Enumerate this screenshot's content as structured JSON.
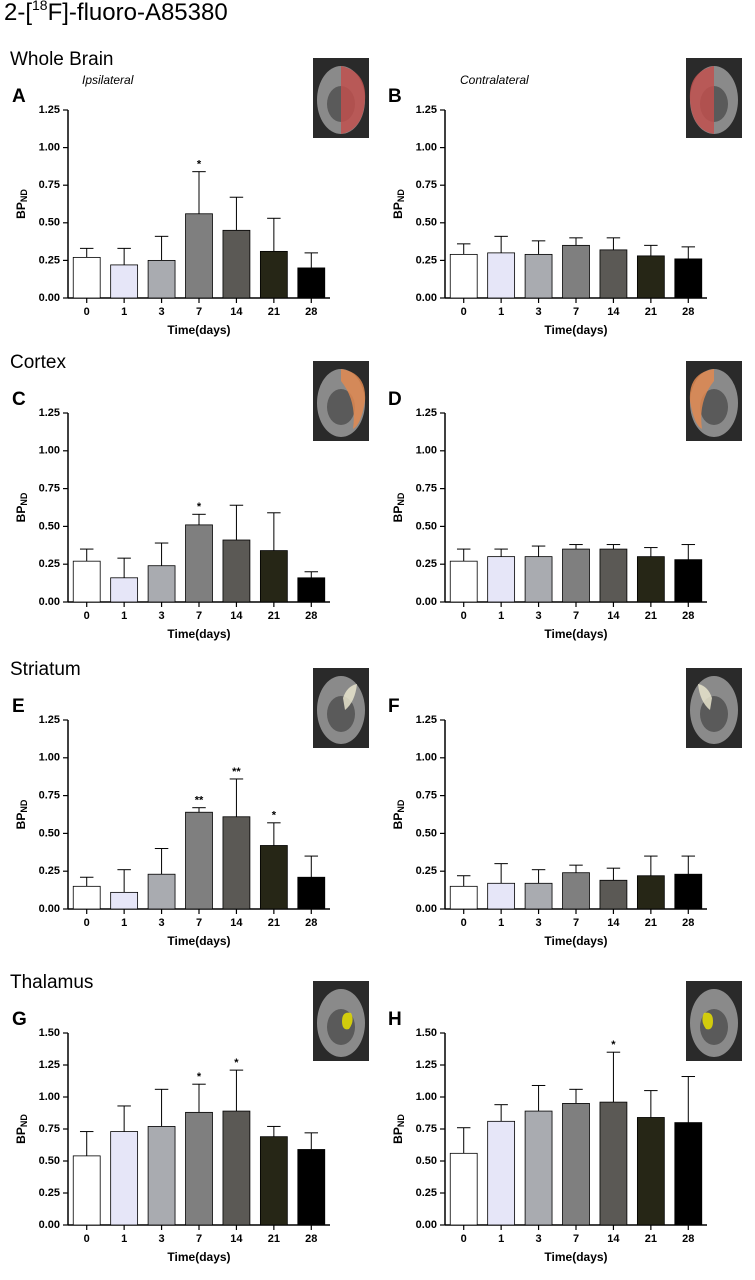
{
  "title_parts": [
    "2-[",
    "18",
    "F]-fluoro-A85380"
  ],
  "chart_data": [
    {
      "type": "bar",
      "panel": "A",
      "section": "Whole Brain",
      "note": "Ipsilateral",
      "x_label": "Time(days)",
      "y_label": "BP",
      "y_label_sub": "ND",
      "categories": [
        "0",
        "1",
        "3",
        "7",
        "14",
        "21",
        "28"
      ],
      "values": [
        0.27,
        0.22,
        0.25,
        0.56,
        0.45,
        0.31,
        0.2
      ],
      "errors": [
        0.06,
        0.11,
        0.16,
        0.28,
        0.22,
        0.22,
        0.1
      ],
      "significance": [
        null,
        null,
        null,
        "*",
        null,
        null,
        null
      ],
      "colors": [
        "#ffffff",
        "#e6e6f8",
        "#a9abb0",
        "#7f7f7f",
        "#5b5955",
        "#262616",
        "#000000"
      ],
      "ylim": [
        0,
        1.25
      ],
      "yticks": [
        {
          "value": 0,
          "label": "0.00"
        },
        {
          "value": 0.25,
          "label": "0.25"
        },
        {
          "value": 0.5,
          "label": "0.50"
        },
        {
          "value": 0.75,
          "label": "0.75"
        },
        {
          "value": 1,
          "label": "1.00"
        },
        {
          "value": 1.25,
          "label": "1.25"
        }
      ]
    },
    {
      "type": "bar",
      "panel": "B",
      "note": "Contralateral",
      "x_label": "Time(days)",
      "y_label": "BP",
      "y_label_sub": "ND",
      "categories": [
        "0",
        "1",
        "3",
        "7",
        "14",
        "21",
        "28"
      ],
      "values": [
        0.29,
        0.3,
        0.29,
        0.35,
        0.32,
        0.28,
        0.26
      ],
      "errors": [
        0.07,
        0.11,
        0.09,
        0.05,
        0.08,
        0.07,
        0.08
      ],
      "significance": [
        null,
        null,
        null,
        null,
        null,
        null,
        null
      ],
      "colors": [
        "#ffffff",
        "#e6e6f8",
        "#a9abb0",
        "#7f7f7f",
        "#5b5955",
        "#262616",
        "#000000"
      ],
      "ylim": [
        0,
        1.25
      ],
      "yticks": [
        {
          "value": 0,
          "label": "0.00"
        },
        {
          "value": 0.25,
          "label": "0.25"
        },
        {
          "value": 0.5,
          "label": "0.50"
        },
        {
          "value": 0.75,
          "label": "0.75"
        },
        {
          "value": 1,
          "label": "1.00"
        },
        {
          "value": 1.25,
          "label": "1.25"
        }
      ]
    },
    {
      "type": "bar",
      "panel": "C",
      "section": "Cortex",
      "x_label": "Time(days)",
      "y_label": "BP",
      "y_label_sub": "ND",
      "categories": [
        "0",
        "1",
        "3",
        "7",
        "14",
        "21",
        "28"
      ],
      "values": [
        0.27,
        0.16,
        0.24,
        0.51,
        0.41,
        0.34,
        0.16
      ],
      "errors": [
        0.08,
        0.13,
        0.15,
        0.07,
        0.23,
        0.25,
        0.04
      ],
      "significance": [
        null,
        null,
        null,
        "*",
        null,
        null,
        null
      ],
      "colors": [
        "#ffffff",
        "#e6e6f8",
        "#a9abb0",
        "#7f7f7f",
        "#5b5955",
        "#262616",
        "#000000"
      ],
      "ylim": [
        0,
        1.25
      ],
      "yticks": [
        {
          "value": 0,
          "label": "0.00"
        },
        {
          "value": 0.25,
          "label": "0.25"
        },
        {
          "value": 0.5,
          "label": "0.50"
        },
        {
          "value": 0.75,
          "label": "0.75"
        },
        {
          "value": 1,
          "label": "1.00"
        },
        {
          "value": 1.25,
          "label": "1.25"
        }
      ]
    },
    {
      "type": "bar",
      "panel": "D",
      "x_label": "Time(days)",
      "y_label": "BP",
      "y_label_sub": "ND",
      "categories": [
        "0",
        "1",
        "3",
        "7",
        "14",
        "21",
        "28"
      ],
      "values": [
        0.27,
        0.3,
        0.3,
        0.35,
        0.35,
        0.3,
        0.28
      ],
      "errors": [
        0.08,
        0.05,
        0.07,
        0.03,
        0.03,
        0.06,
        0.1
      ],
      "significance": [
        null,
        null,
        null,
        null,
        null,
        null,
        null
      ],
      "colors": [
        "#ffffff",
        "#e6e6f8",
        "#a9abb0",
        "#7f7f7f",
        "#5b5955",
        "#262616",
        "#000000"
      ],
      "ylim": [
        0,
        1.25
      ],
      "yticks": [
        {
          "value": 0,
          "label": "0.00"
        },
        {
          "value": 0.25,
          "label": "0.25"
        },
        {
          "value": 0.5,
          "label": "0.50"
        },
        {
          "value": 0.75,
          "label": "0.75"
        },
        {
          "value": 1,
          "label": "1.00"
        },
        {
          "value": 1.25,
          "label": "1.25"
        }
      ]
    },
    {
      "type": "bar",
      "panel": "E",
      "section": "Striatum",
      "x_label": "Time(days)",
      "y_label": "BP",
      "y_label_sub": "ND",
      "categories": [
        "0",
        "1",
        "3",
        "7",
        "14",
        "21",
        "28"
      ],
      "values": [
        0.15,
        0.11,
        0.23,
        0.64,
        0.61,
        0.42,
        0.21
      ],
      "errors": [
        0.06,
        0.15,
        0.17,
        0.03,
        0.25,
        0.15,
        0.14
      ],
      "significance": [
        null,
        null,
        null,
        "**",
        "**",
        "*",
        null
      ],
      "colors": [
        "#ffffff",
        "#e6e6f8",
        "#a9abb0",
        "#7f7f7f",
        "#5b5955",
        "#262616",
        "#000000"
      ],
      "ylim": [
        0,
        1.25
      ],
      "yticks": [
        {
          "value": 0,
          "label": "0.00"
        },
        {
          "value": 0.25,
          "label": "0.25"
        },
        {
          "value": 0.5,
          "label": "0.50"
        },
        {
          "value": 0.75,
          "label": "0.75"
        },
        {
          "value": 1,
          "label": "1.00"
        },
        {
          "value": 1.25,
          "label": "1.25"
        }
      ]
    },
    {
      "type": "bar",
      "panel": "F",
      "x_label": "Time(days)",
      "y_label": "BP",
      "y_label_sub": "ND",
      "categories": [
        "0",
        "1",
        "3",
        "7",
        "14",
        "21",
        "28"
      ],
      "values": [
        0.15,
        0.17,
        0.17,
        0.24,
        0.19,
        0.22,
        0.23
      ],
      "errors": [
        0.07,
        0.13,
        0.09,
        0.05,
        0.08,
        0.13,
        0.12
      ],
      "significance": [
        null,
        null,
        null,
        null,
        null,
        null,
        null
      ],
      "colors": [
        "#ffffff",
        "#e6e6f8",
        "#a9abb0",
        "#7f7f7f",
        "#5b5955",
        "#262616",
        "#000000"
      ],
      "ylim": [
        0,
        1.25
      ],
      "yticks": [
        {
          "value": 0,
          "label": "0.00"
        },
        {
          "value": 0.25,
          "label": "0.25"
        },
        {
          "value": 0.5,
          "label": "0.50"
        },
        {
          "value": 0.75,
          "label": "0.75"
        },
        {
          "value": 1,
          "label": "1.00"
        },
        {
          "value": 1.25,
          "label": "1.25"
        }
      ]
    },
    {
      "type": "bar",
      "panel": "G",
      "section": "Thalamus",
      "x_label": "Time(days)",
      "y_label": "BP",
      "y_label_sub": "ND",
      "categories": [
        "0",
        "1",
        "3",
        "7",
        "14",
        "21",
        "28"
      ],
      "values": [
        0.54,
        0.73,
        0.77,
        0.88,
        0.89,
        0.69,
        0.59
      ],
      "errors": [
        0.19,
        0.2,
        0.29,
        0.22,
        0.32,
        0.08,
        0.13
      ],
      "significance": [
        null,
        null,
        null,
        "*",
        "*",
        null,
        null
      ],
      "colors": [
        "#ffffff",
        "#e6e6f8",
        "#a9abb0",
        "#7f7f7f",
        "#5b5955",
        "#262616",
        "#000000"
      ],
      "ylim": [
        0,
        1.5
      ],
      "yticks": [
        {
          "value": 0,
          "label": "0.00"
        },
        {
          "value": 0.25,
          "label": "0.25"
        },
        {
          "value": 0.5,
          "label": "0.50"
        },
        {
          "value": 0.75,
          "label": "0.75"
        },
        {
          "value": 1,
          "label": "1.00"
        },
        {
          "value": 1.25,
          "label": "1.25"
        },
        {
          "value": 1.5,
          "label": "1.50"
        }
      ]
    },
    {
      "type": "bar",
      "panel": "H",
      "x_label": "Time(days)",
      "y_label": "BP",
      "y_label_sub": "ND",
      "categories": [
        "0",
        "1",
        "3",
        "7",
        "14",
        "21",
        "28"
      ],
      "values": [
        0.56,
        0.81,
        0.89,
        0.95,
        0.96,
        0.84,
        0.8
      ],
      "errors": [
        0.2,
        0.13,
        0.2,
        0.11,
        0.39,
        0.21,
        0.36
      ],
      "significance": [
        null,
        null,
        null,
        null,
        "*",
        null,
        null
      ],
      "colors": [
        "#ffffff",
        "#e6e6f8",
        "#a9abb0",
        "#7f7f7f",
        "#5b5955",
        "#262616",
        "#000000"
      ],
      "ylim": [
        0,
        1.5
      ],
      "yticks": [
        {
          "value": 0,
          "label": "0.00"
        },
        {
          "value": 0.25,
          "label": "0.25"
        },
        {
          "value": 0.5,
          "label": "0.50"
        },
        {
          "value": 0.75,
          "label": "0.75"
        },
        {
          "value": 1,
          "label": "1.00"
        },
        {
          "value": 1.25,
          "label": "1.25"
        },
        {
          "value": 1.5,
          "label": "1.50"
        }
      ]
    }
  ]
}
